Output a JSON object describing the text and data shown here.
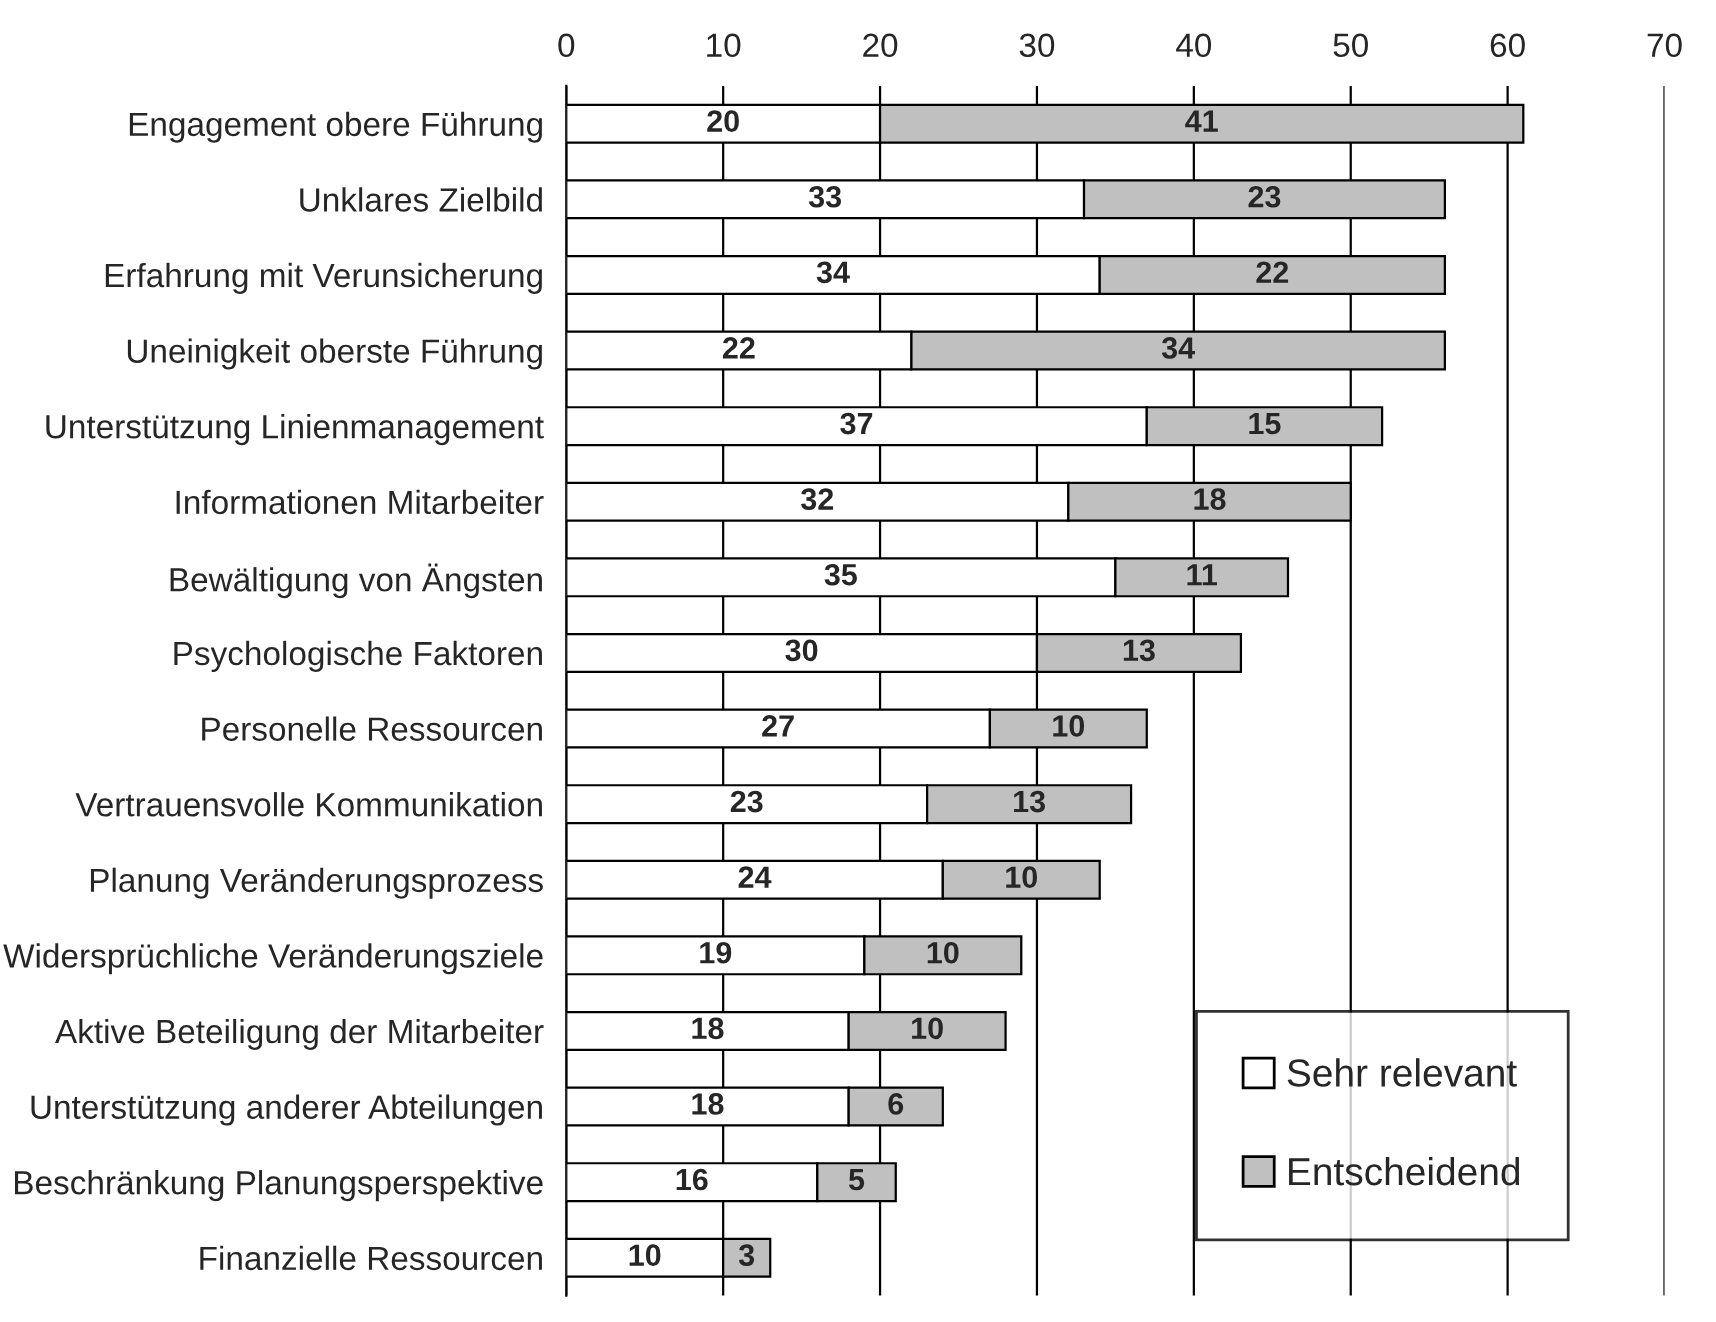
{
  "chart_data": {
    "type": "bar",
    "orientation": "horizontal",
    "stacked": true,
    "categories": [
      "Engagement obere Führung",
      "Unklares Zielbild",
      "Erfahrung mit Verunsicherung",
      "Uneinigkeit oberste Führung",
      "Unterstützung Linienmanagement",
      "Informationen Mitarbeiter",
      "Bewältigung von Ängsten",
      "Psychologische Faktoren",
      "Personelle Ressourcen",
      "Vertrauensvolle Kommunikation",
      "Planung Veränderungsprozess",
      "Widersprüchliche Veränderungsziele",
      "Aktive Beteiligung der Mitarbeiter",
      "Unterstützung anderer Abteilungen",
      "Beschränkung Planungsperspektive",
      "Finanzielle Ressourcen"
    ],
    "series": [
      {
        "name": "Sehr relevant",
        "color": "#ffffff",
        "values": [
          20,
          33,
          34,
          22,
          37,
          32,
          35,
          30,
          27,
          23,
          24,
          19,
          18,
          18,
          16,
          10
        ]
      },
      {
        "name": "Entscheidend",
        "color": "#c0c0c0",
        "values": [
          41,
          23,
          22,
          34,
          15,
          18,
          11,
          13,
          10,
          13,
          10,
          10,
          10,
          6,
          5,
          3
        ]
      }
    ],
    "xlim": [
      0,
      70
    ],
    "xticks": [
      0,
      10,
      20,
      30,
      40,
      50,
      60,
      70
    ],
    "grid": "x",
    "legend": "bottom right",
    "data_labels": true
  }
}
